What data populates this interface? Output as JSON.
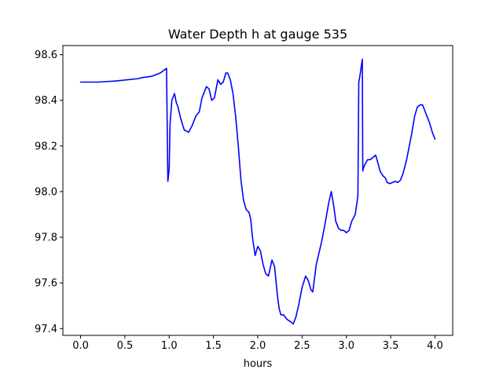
{
  "chart_data": {
    "type": "line",
    "title": "Water Depth h at gauge 535",
    "xlabel": "hours",
    "ylabel": "",
    "xlim": [
      -0.2,
      4.2
    ],
    "ylim": [
      97.37,
      98.64
    ],
    "grid": false,
    "legend": "none",
    "xticks": [
      0.0,
      0.5,
      1.0,
      1.5,
      2.0,
      2.5,
      3.0,
      3.5,
      4.0
    ],
    "xtick_labels": [
      "0.0",
      "0.5",
      "1.0",
      "1.5",
      "2.0",
      "2.5",
      "3.0",
      "3.5",
      "4.0"
    ],
    "yticks": [
      97.4,
      97.6,
      97.8,
      98.0,
      98.2,
      98.4,
      98.6
    ],
    "ytick_labels": [
      "97.4",
      "97.6",
      "97.8",
      "98.0",
      "98.2",
      "98.4",
      "98.6"
    ],
    "series": [
      {
        "color": "#0000ff",
        "x": [
          0.0,
          0.2,
          0.4,
          0.65,
          0.7,
          0.8,
          0.9,
          0.97,
          0.985,
          1.0,
          1.01,
          1.03,
          1.06,
          1.08,
          1.1,
          1.13,
          1.17,
          1.22,
          1.26,
          1.3,
          1.34,
          1.37,
          1.42,
          1.45,
          1.48,
          1.51,
          1.55,
          1.58,
          1.61,
          1.64,
          1.66,
          1.69,
          1.72,
          1.75,
          1.78,
          1.81,
          1.84,
          1.87,
          1.9,
          1.92,
          1.94,
          1.97,
          2.0,
          2.03,
          2.06,
          2.09,
          2.12,
          2.16,
          2.19,
          2.22,
          2.24,
          2.26,
          2.29,
          2.33,
          2.37,
          2.4,
          2.43,
          2.46,
          2.5,
          2.54,
          2.57,
          2.6,
          2.62,
          2.64,
          2.66,
          2.69,
          2.72,
          2.76,
          2.8,
          2.83,
          2.86,
          2.88,
          2.91,
          2.94,
          2.97,
          3.0,
          3.03,
          3.06,
          3.1,
          3.13,
          3.14,
          3.15,
          3.18,
          3.185,
          3.19,
          3.21,
          3.24,
          3.27,
          3.3,
          3.33,
          3.36,
          3.38,
          3.41,
          3.44,
          3.46,
          3.49,
          3.52,
          3.55,
          3.58,
          3.61,
          3.64,
          3.68,
          3.71,
          3.74,
          3.77,
          3.8,
          3.83,
          3.86,
          3.88,
          3.91,
          3.94,
          3.97,
          4.0
        ],
        "y": [
          98.48,
          98.48,
          98.485,
          98.495,
          98.5,
          98.505,
          98.52,
          98.54,
          98.045,
          98.1,
          98.3,
          98.4,
          98.43,
          98.39,
          98.37,
          98.32,
          98.27,
          98.26,
          98.29,
          98.33,
          98.35,
          98.41,
          98.46,
          98.45,
          98.4,
          98.41,
          98.49,
          98.47,
          98.48,
          98.52,
          98.52,
          98.49,
          98.43,
          98.33,
          98.2,
          98.05,
          97.96,
          97.92,
          97.91,
          97.88,
          97.8,
          97.72,
          97.76,
          97.74,
          97.68,
          97.64,
          97.63,
          97.7,
          97.67,
          97.55,
          97.49,
          97.46,
          97.46,
          97.44,
          97.43,
          97.42,
          97.45,
          97.5,
          97.58,
          97.63,
          97.61,
          97.57,
          97.56,
          97.62,
          97.68,
          97.73,
          97.78,
          97.86,
          97.95,
          98.0,
          97.93,
          97.87,
          97.84,
          97.83,
          97.83,
          97.82,
          97.83,
          97.87,
          97.9,
          97.98,
          98.48,
          98.5,
          98.58,
          98.09,
          98.1,
          98.12,
          98.14,
          98.14,
          98.15,
          98.16,
          98.12,
          98.09,
          98.07,
          98.06,
          98.04,
          98.035,
          98.04,
          98.045,
          98.04,
          98.05,
          98.08,
          98.14,
          98.2,
          98.26,
          98.33,
          98.37,
          98.38,
          98.38,
          98.36,
          98.33,
          98.3,
          98.26,
          98.23
        ]
      }
    ]
  }
}
